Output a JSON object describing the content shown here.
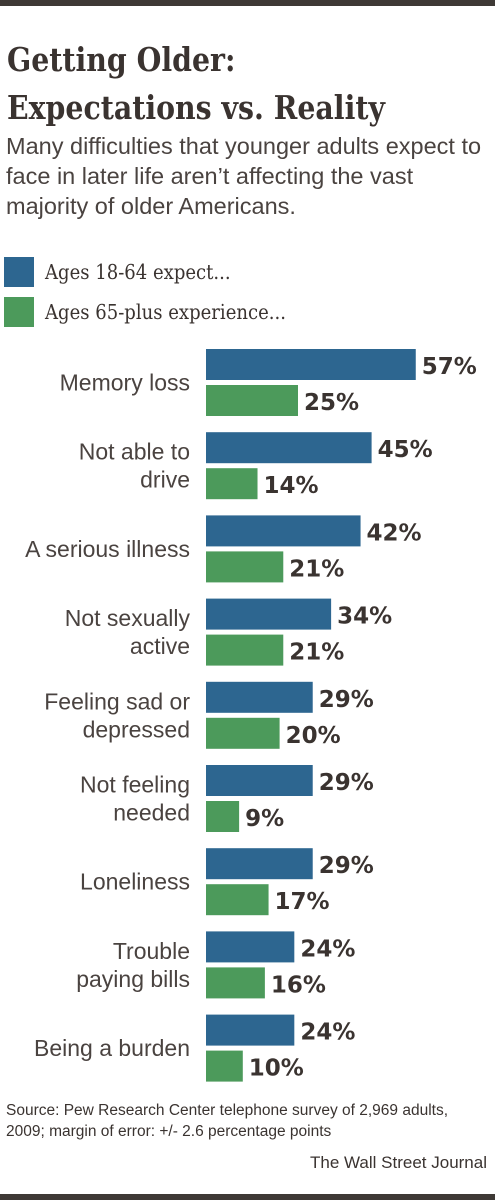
{
  "title_lines": [
    "Getting Older:",
    "Expectations vs. Reality"
  ],
  "subtitle": "Many difficulties that younger adults expect to face in later life aren’t affecting the vast majority of older Americans.",
  "source": "Source: Pew Research Center telephone survey of 2,969 adults, 2009; margin of error: +/- 2.6 percentage points",
  "credit": "The Wall Street Journal",
  "colors": {
    "expect": "#2d6690",
    "experience": "#4c9a5b"
  },
  "chart_data": {
    "type": "bar",
    "orientation": "horizontal",
    "categories": [
      "Memory loss",
      "Not able to drive",
      "A serious illness",
      "Not sexually active",
      "Feeling sad or depressed",
      "Not feeling needed",
      "Loneliness",
      "Trouble paying bills",
      "Being a burden"
    ],
    "category_lines": [
      [
        "Memory loss"
      ],
      [
        "Not able to",
        "drive"
      ],
      [
        "A serious illness"
      ],
      [
        "Not sexually",
        "active"
      ],
      [
        "Feeling sad or",
        "depressed"
      ],
      [
        "Not feeling",
        "needed"
      ],
      [
        "Loneliness"
      ],
      [
        "Trouble",
        "paying bills"
      ],
      [
        "Being a burden"
      ]
    ],
    "series": [
      {
        "name": "Ages 18-64 expect...",
        "values": [
          57,
          45,
          42,
          34,
          29,
          29,
          29,
          24,
          24
        ],
        "labels": [
          "57%",
          "45%",
          "42%",
          "34%",
          "29%",
          "29%",
          "29%",
          "24%",
          "24%"
        ]
      },
      {
        "name": "Ages 65-plus experience...",
        "values": [
          25,
          14,
          21,
          21,
          20,
          9,
          17,
          16,
          10
        ],
        "labels": [
          "25%",
          "14%",
          "21%",
          "21%",
          "20%",
          "9%",
          "17%",
          "16%",
          "10%"
        ]
      }
    ],
    "legend_position": "top-left",
    "grid": false
  }
}
